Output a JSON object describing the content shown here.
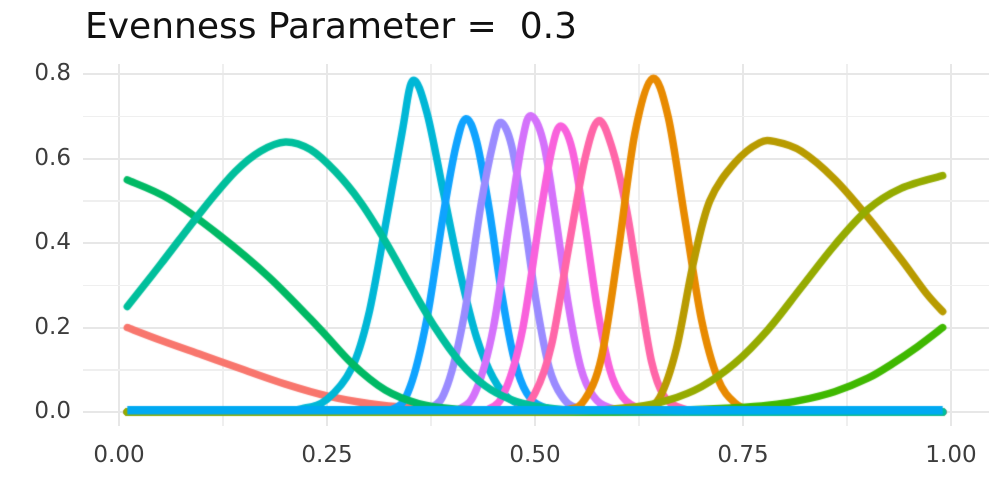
{
  "title": "Evenness Parameter =  0.3",
  "axes": {
    "x_ticks": [
      "0.00",
      "0.25",
      "0.50",
      "0.75",
      "1.00"
    ],
    "x_tick_values": [
      0,
      0.25,
      0.5,
      0.75,
      1.0
    ],
    "y_ticks": [
      "0.8",
      "0.6",
      "0.4",
      "0.2",
      "0.0"
    ],
    "y_tick_values": [
      0.8,
      0.6,
      0.4,
      0.2,
      0.0
    ]
  },
  "chart_data": {
    "type": "line",
    "title": "Evenness Parameter =  0.3",
    "xlabel": "",
    "ylabel": "",
    "xlim": [
      -0.045,
      1.045
    ],
    "ylim": [
      -0.035,
      0.82
    ],
    "grid": "on",
    "legend": "none",
    "description": "Fourteen species response curves (bell-shaped abundance curves) along a 0-1 gradient; one very broad species appears as a flat line near zero.",
    "series": [
      {
        "name": "species-salmon",
        "color": "#F8766D",
        "peak_x": 0.0,
        "peak_y": 0.2,
        "points": [
          [
            0.01,
            0.2
          ],
          [
            0.05,
            0.17
          ],
          [
            0.1,
            0.135
          ],
          [
            0.15,
            0.1
          ],
          [
            0.2,
            0.066
          ],
          [
            0.25,
            0.038
          ],
          [
            0.3,
            0.02
          ],
          [
            0.35,
            0.01
          ],
          [
            0.42,
            0.004
          ],
          [
            0.55,
            0.001
          ],
          [
            0.75,
            0.0
          ],
          [
            0.99,
            0.0
          ]
        ]
      },
      {
        "name": "species-cyan",
        "color": "#00B7D6",
        "peak_x": 0.353,
        "peak_y": 0.785,
        "points": [
          [
            0.01,
            0.0
          ],
          [
            0.18,
            0.001
          ],
          [
            0.22,
            0.008
          ],
          [
            0.25,
            0.03
          ],
          [
            0.28,
            0.105
          ],
          [
            0.3,
            0.23
          ],
          [
            0.32,
            0.44
          ],
          [
            0.34,
            0.66
          ],
          [
            0.353,
            0.785
          ],
          [
            0.37,
            0.71
          ],
          [
            0.39,
            0.52
          ],
          [
            0.41,
            0.33
          ],
          [
            0.43,
            0.175
          ],
          [
            0.45,
            0.08
          ],
          [
            0.47,
            0.03
          ],
          [
            0.5,
            0.008
          ],
          [
            0.55,
            0.001
          ],
          [
            0.7,
            0.0
          ],
          [
            0.99,
            0.0
          ]
        ]
      },
      {
        "name": "species-blue",
        "color": "#0FA3FF",
        "peak_x": 0.417,
        "peak_y": 0.695,
        "points": [
          [
            0.01,
            0.0
          ],
          [
            0.28,
            0.0
          ],
          [
            0.33,
            0.008
          ],
          [
            0.35,
            0.06
          ],
          [
            0.37,
            0.22
          ],
          [
            0.39,
            0.47
          ],
          [
            0.405,
            0.63
          ],
          [
            0.417,
            0.695
          ],
          [
            0.43,
            0.64
          ],
          [
            0.445,
            0.48
          ],
          [
            0.46,
            0.28
          ],
          [
            0.475,
            0.125
          ],
          [
            0.49,
            0.045
          ],
          [
            0.51,
            0.012
          ],
          [
            0.55,
            0.002
          ],
          [
            0.65,
            0.0
          ],
          [
            0.99,
            0.0
          ]
        ]
      },
      {
        "name": "species-periwinkle",
        "color": "#9A8BFF",
        "peak_x": 0.459,
        "peak_y": 0.686,
        "points": [
          [
            0.01,
            0.0
          ],
          [
            0.33,
            0.0
          ],
          [
            0.375,
            0.01
          ],
          [
            0.395,
            0.065
          ],
          [
            0.415,
            0.23
          ],
          [
            0.435,
            0.49
          ],
          [
            0.45,
            0.64
          ],
          [
            0.459,
            0.686
          ],
          [
            0.472,
            0.63
          ],
          [
            0.487,
            0.455
          ],
          [
            0.502,
            0.255
          ],
          [
            0.517,
            0.105
          ],
          [
            0.532,
            0.038
          ],
          [
            0.55,
            0.01
          ],
          [
            0.59,
            0.001
          ],
          [
            0.7,
            0.0
          ],
          [
            0.99,
            0.0
          ]
        ]
      },
      {
        "name": "species-orchid",
        "color": "#D472FB",
        "peak_x": 0.495,
        "peak_y": 0.702,
        "points": [
          [
            0.01,
            0.0
          ],
          [
            0.37,
            0.0
          ],
          [
            0.41,
            0.008
          ],
          [
            0.43,
            0.055
          ],
          [
            0.45,
            0.2
          ],
          [
            0.47,
            0.46
          ],
          [
            0.485,
            0.645
          ],
          [
            0.495,
            0.702
          ],
          [
            0.51,
            0.64
          ],
          [
            0.525,
            0.46
          ],
          [
            0.54,
            0.255
          ],
          [
            0.555,
            0.105
          ],
          [
            0.57,
            0.038
          ],
          [
            0.59,
            0.01
          ],
          [
            0.63,
            0.001
          ],
          [
            0.75,
            0.0
          ],
          [
            0.99,
            0.0
          ]
        ]
      },
      {
        "name": "species-magenta",
        "color": "#F961DC",
        "peak_x": 0.531,
        "peak_y": 0.678,
        "points": [
          [
            0.01,
            0.0
          ],
          [
            0.4,
            0.0
          ],
          [
            0.445,
            0.008
          ],
          [
            0.465,
            0.055
          ],
          [
            0.485,
            0.195
          ],
          [
            0.505,
            0.45
          ],
          [
            0.52,
            0.62
          ],
          [
            0.531,
            0.678
          ],
          [
            0.545,
            0.62
          ],
          [
            0.56,
            0.445
          ],
          [
            0.575,
            0.245
          ],
          [
            0.59,
            0.1
          ],
          [
            0.605,
            0.036
          ],
          [
            0.625,
            0.009
          ],
          [
            0.66,
            0.001
          ],
          [
            0.78,
            0.0
          ],
          [
            0.99,
            0.0
          ]
        ]
      },
      {
        "name": "species-pink",
        "color": "#FF66A8",
        "peak_x": 0.576,
        "peak_y": 0.69,
        "points": [
          [
            0.01,
            0.0
          ],
          [
            0.43,
            0.0
          ],
          [
            0.48,
            0.008
          ],
          [
            0.5,
            0.045
          ],
          [
            0.52,
            0.16
          ],
          [
            0.54,
            0.385
          ],
          [
            0.56,
            0.6
          ],
          [
            0.576,
            0.69
          ],
          [
            0.592,
            0.63
          ],
          [
            0.61,
            0.48
          ],
          [
            0.625,
            0.295
          ],
          [
            0.64,
            0.12
          ],
          [
            0.655,
            0.038
          ],
          [
            0.675,
            0.01
          ],
          [
            0.71,
            0.001
          ],
          [
            0.85,
            0.0
          ],
          [
            0.99,
            0.0
          ]
        ]
      },
      {
        "name": "species-orange",
        "color": "#E88A00",
        "peak_x": 0.641,
        "peak_y": 0.79,
        "points": [
          [
            0.01,
            0.0
          ],
          [
            0.4,
            0.0
          ],
          [
            0.5,
            0.001
          ],
          [
            0.54,
            0.006
          ],
          [
            0.56,
            0.03
          ],
          [
            0.58,
            0.13
          ],
          [
            0.6,
            0.38
          ],
          [
            0.62,
            0.66
          ],
          [
            0.641,
            0.79
          ],
          [
            0.66,
            0.7
          ],
          [
            0.68,
            0.46
          ],
          [
            0.7,
            0.22
          ],
          [
            0.72,
            0.078
          ],
          [
            0.74,
            0.022
          ],
          [
            0.76,
            0.006
          ],
          [
            0.8,
            0.001
          ],
          [
            0.9,
            0.0
          ],
          [
            0.99,
            0.0
          ]
        ]
      },
      {
        "name": "species-dark-yellow",
        "color": "#B89B00",
        "peak_x": 0.788,
        "peak_y": 0.64,
        "points": [
          [
            0.01,
            0.0
          ],
          [
            0.5,
            0.0
          ],
          [
            0.6,
            0.002
          ],
          [
            0.63,
            0.008
          ],
          [
            0.65,
            0.035
          ],
          [
            0.67,
            0.15
          ],
          [
            0.69,
            0.35
          ],
          [
            0.71,
            0.5
          ],
          [
            0.74,
            0.59
          ],
          [
            0.77,
            0.638
          ],
          [
            0.79,
            0.64
          ],
          [
            0.82,
            0.618
          ],
          [
            0.86,
            0.552
          ],
          [
            0.9,
            0.462
          ],
          [
            0.94,
            0.362
          ],
          [
            0.97,
            0.282
          ],
          [
            0.99,
            0.238
          ]
        ]
      },
      {
        "name": "species-emerald",
        "color": "#00B964",
        "peak_x": 0.0,
        "peak_y": 0.55,
        "points": [
          [
            0.01,
            0.55
          ],
          [
            0.06,
            0.505
          ],
          [
            0.12,
            0.42
          ],
          [
            0.18,
            0.32
          ],
          [
            0.24,
            0.2
          ],
          [
            0.28,
            0.115
          ],
          [
            0.32,
            0.052
          ],
          [
            0.36,
            0.02
          ],
          [
            0.4,
            0.008
          ],
          [
            0.48,
            0.002
          ],
          [
            0.6,
            0.0
          ],
          [
            0.99,
            0.0
          ]
        ]
      },
      {
        "name": "species-teal",
        "color": "#00BF9C",
        "peak_x": 0.2,
        "peak_y": 0.64,
        "points": [
          [
            0.01,
            0.25
          ],
          [
            0.05,
            0.35
          ],
          [
            0.1,
            0.478
          ],
          [
            0.14,
            0.57
          ],
          [
            0.17,
            0.618
          ],
          [
            0.2,
            0.64
          ],
          [
            0.23,
            0.622
          ],
          [
            0.26,
            0.57
          ],
          [
            0.29,
            0.498
          ],
          [
            0.32,
            0.405
          ],
          [
            0.35,
            0.3
          ],
          [
            0.38,
            0.2
          ],
          [
            0.41,
            0.118
          ],
          [
            0.44,
            0.062
          ],
          [
            0.47,
            0.03
          ],
          [
            0.5,
            0.014
          ],
          [
            0.55,
            0.004
          ],
          [
            0.62,
            0.001
          ],
          [
            0.75,
            0.0
          ],
          [
            0.99,
            0.0
          ]
        ]
      },
      {
        "name": "species-green",
        "color": "#3FB800",
        "peak_x": 1.0,
        "peak_y": 0.2,
        "points": [
          [
            0.01,
            0.0
          ],
          [
            0.55,
            0.0
          ],
          [
            0.68,
            0.005
          ],
          [
            0.74,
            0.01
          ],
          [
            0.78,
            0.016
          ],
          [
            0.82,
            0.028
          ],
          [
            0.86,
            0.048
          ],
          [
            0.9,
            0.08
          ],
          [
            0.93,
            0.115
          ],
          [
            0.96,
            0.155
          ],
          [
            0.99,
            0.2
          ]
        ]
      },
      {
        "name": "species-olive",
        "color": "#95AB00",
        "peak_x": 1.0,
        "peak_y": 0.56,
        "points": [
          [
            0.01,
            0.0
          ],
          [
            0.4,
            0.0
          ],
          [
            0.55,
            0.002
          ],
          [
            0.62,
            0.012
          ],
          [
            0.66,
            0.028
          ],
          [
            0.7,
            0.06
          ],
          [
            0.74,
            0.115
          ],
          [
            0.78,
            0.195
          ],
          [
            0.82,
            0.295
          ],
          [
            0.86,
            0.395
          ],
          [
            0.9,
            0.48
          ],
          [
            0.94,
            0.53
          ],
          [
            0.99,
            0.56
          ]
        ]
      },
      {
        "name": "species-flat-sky",
        "color": "#00A9F2",
        "peak_x": 0.5,
        "peak_y": 0.004,
        "points": [
          [
            0.01,
            0.004
          ],
          [
            0.99,
            0.004
          ]
        ]
      }
    ]
  }
}
